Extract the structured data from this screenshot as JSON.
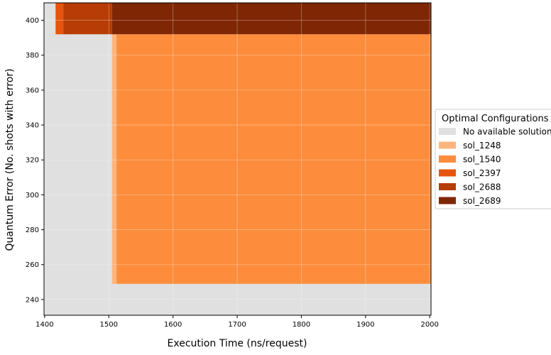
{
  "chart_data": {
    "type": "heatmap",
    "xlabel": "Execution Time (ns/request)",
    "ylabel": "Quantum Error (No. shots with error)",
    "xlim": [
      1399,
      2002
    ],
    "ylim": [
      231,
      410
    ],
    "xticks": [
      1400,
      1500,
      1600,
      1700,
      1800,
      1900,
      2000
    ],
    "yticks": [
      240,
      260,
      280,
      300,
      320,
      340,
      360,
      380,
      400
    ],
    "grid": true,
    "legend": {
      "title": "Optimal Configurations",
      "placement": "center-right, outside plot",
      "entries": [
        {
          "label": "No available solution",
          "color": "#e0e0e0"
        },
        {
          "label": "sol_1248",
          "color": "#fdb57e"
        },
        {
          "label": "sol_1540",
          "color": "#fd8d3c"
        },
        {
          "label": "sol_2397",
          "color": "#e6550d"
        },
        {
          "label": "sol_2688",
          "color": "#b73c05"
        },
        {
          "label": "sol_2689",
          "color": "#7f2704"
        }
      ]
    },
    "regions": [
      {
        "series": "No available solution",
        "x": [
          1399,
          2002
        ],
        "y": [
          231,
          410
        ]
      },
      {
        "series": "sol_1248",
        "x": [
          1505,
          1512
        ],
        "y": [
          249,
          410
        ]
      },
      {
        "series": "sol_1540",
        "x": [
          1512,
          2002
        ],
        "y": [
          249,
          392
        ]
      },
      {
        "series": "sol_2397",
        "x": [
          1417,
          1429
        ],
        "y": [
          392,
          410
        ]
      },
      {
        "series": "sol_2688",
        "x": [
          1429,
          1505
        ],
        "y": [
          392,
          410
        ]
      },
      {
        "series": "sol_2689",
        "x": [
          1505,
          2002
        ],
        "y": [
          392,
          410
        ]
      }
    ]
  }
}
